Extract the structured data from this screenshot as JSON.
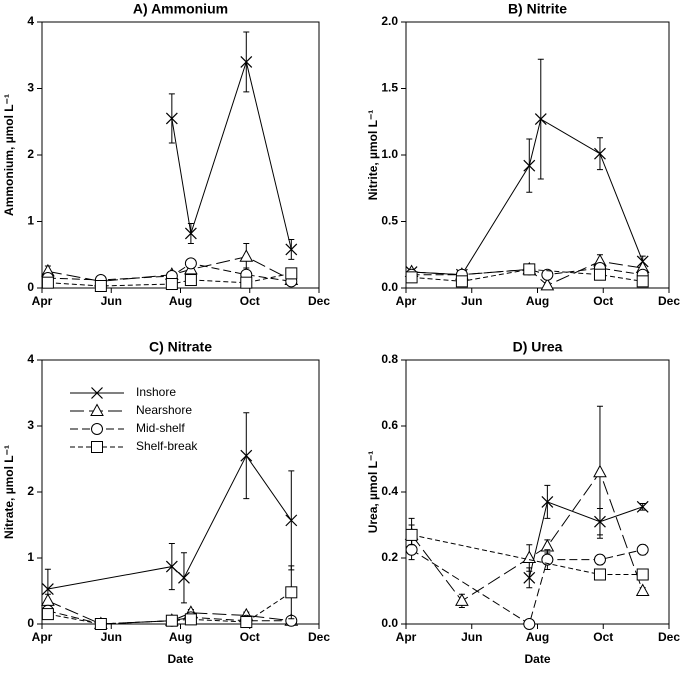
{
  "chart_data": [
    {
      "type": "line",
      "title": "A) Ammonium",
      "y_label": "Ammonium, µmol L⁻¹",
      "xlim": [
        4,
        12
      ],
      "xticks": [
        {
          "value": 4,
          "label": "Apr"
        },
        {
          "value": 6,
          "label": "Jun"
        },
        {
          "value": 8,
          "label": "Aug"
        },
        {
          "value": 10,
          "label": "Oct"
        },
        {
          "value": 12,
          "label": "Dec"
        }
      ],
      "ylim": [
        0,
        4
      ],
      "yticks": [
        0,
        1,
        2,
        3,
        4
      ],
      "series": [
        {
          "marker": "x",
          "line_style": "solid",
          "color": "#000000",
          "x": [
            7.75,
            8.3,
            9.9,
            11.2
          ],
          "values": [
            2.55,
            0.82,
            3.4,
            0.58
          ],
          "errors": [
            0.37,
            0.15,
            0.45,
            0.15
          ]
        },
        {
          "marker": "triangle",
          "line_style": "long-dash",
          "color": "#000000",
          "x": [
            4.17,
            5.7,
            7.75,
            8.3,
            9.9,
            11.2
          ],
          "values": [
            0.25,
            0.1,
            0.2,
            0.28,
            0.47,
            0.12
          ],
          "errors": [
            0.08,
            0.03,
            0.05,
            0.06,
            0.2,
            0.05
          ]
        },
        {
          "marker": "circle",
          "line_style": "dash",
          "color": "#000000",
          "x": [
            4.17,
            5.7,
            7.75,
            8.3,
            9.9,
            11.2
          ],
          "values": [
            0.15,
            0.12,
            0.18,
            0.37,
            0.2,
            0.1
          ],
          "errors": [
            0.05,
            0.05,
            0.05,
            0.06,
            0.1,
            0.04
          ]
        },
        {
          "marker": "square",
          "line_style": "short-dash",
          "color": "#000000",
          "x": [
            4.17,
            5.7,
            7.75,
            8.3,
            9.9,
            11.2
          ],
          "values": [
            0.08,
            0.03,
            0.06,
            0.12,
            0.08,
            0.22
          ],
          "errors": [
            0.03,
            0.02,
            0.03,
            0.04,
            0.04,
            0.08
          ]
        }
      ]
    },
    {
      "type": "line",
      "title": "B) Nitrite",
      "y_label": "Nitrite, µmol L⁻¹",
      "xlim": [
        4,
        12
      ],
      "xticks": [
        {
          "value": 4,
          "label": "Apr"
        },
        {
          "value": 6,
          "label": "Jun"
        },
        {
          "value": 8,
          "label": "Aug"
        },
        {
          "value": 10,
          "label": "Oct"
        },
        {
          "value": 12,
          "label": "Dec"
        }
      ],
      "ylim": [
        0,
        2
      ],
      "yticks": [
        {
          "value": 0,
          "label": "0.0"
        },
        0.5,
        {
          "value": 1,
          "label": "1.0"
        },
        1.5,
        {
          "value": 2,
          "label": "2.0"
        }
      ],
      "series": [
        {
          "marker": "x",
          "line_style": "solid",
          "color": "#000000",
          "x": [
            4.17,
            5.7,
            7.75,
            8.1,
            9.9,
            11.2
          ],
          "values": [
            0.12,
            0.1,
            0.92,
            1.27,
            1.01,
            0.2
          ],
          "errors": [
            0.02,
            0.02,
            0.2,
            0.45,
            0.12,
            0.04
          ]
        },
        {
          "marker": "triangle",
          "line_style": "long-dash",
          "color": "#000000",
          "x": [
            4.17,
            5.7,
            7.75,
            8.3,
            9.9,
            11.2
          ],
          "values": [
            0.12,
            0.1,
            0.14,
            0.02,
            0.2,
            0.15
          ],
          "errors": [
            0.02,
            0.02,
            0.02,
            0.02,
            0.05,
            0.03
          ]
        },
        {
          "marker": "circle",
          "line_style": "dash",
          "color": "#000000",
          "x": [
            4.17,
            5.7,
            7.75,
            8.3,
            9.9,
            11.2
          ],
          "values": [
            0.1,
            0.1,
            0.14,
            0.1,
            0.15,
            0.1
          ],
          "errors": [
            0.02,
            0.02,
            0.02,
            0.02,
            0.03,
            0.02
          ]
        },
        {
          "marker": "square",
          "line_style": "short-dash",
          "color": "#000000",
          "x": [
            4.17,
            5.7,
            7.75,
            9.9,
            11.2
          ],
          "values": [
            0.08,
            0.05,
            0.14,
            0.1,
            0.05
          ],
          "errors": [
            0.02,
            0.02,
            0.02,
            0.03,
            0.02
          ]
        }
      ]
    },
    {
      "type": "line",
      "title": "C) Nitrate",
      "y_label": "Nitrate, µmol L⁻¹",
      "x_label": "Date",
      "legend": "upper left",
      "xlim": [
        4,
        12
      ],
      "xticks": [
        {
          "value": 4,
          "label": "Apr"
        },
        {
          "value": 6,
          "label": "Jun"
        },
        {
          "value": 8,
          "label": "Aug"
        },
        {
          "value": 10,
          "label": "Oct"
        },
        {
          "value": 12,
          "label": "Dec"
        }
      ],
      "ylim": [
        0,
        4
      ],
      "yticks": [
        0,
        1,
        2,
        3,
        4
      ],
      "series": [
        {
          "name": "Inshore",
          "marker": "x",
          "line_style": "solid",
          "color": "#000000",
          "x": [
            4.17,
            7.75,
            8.1,
            9.9,
            11.2
          ],
          "values": [
            0.53,
            0.87,
            0.7,
            2.55,
            1.57
          ],
          "errors": [
            0.3,
            0.35,
            0.38,
            0.65,
            0.75
          ]
        },
        {
          "name": "Nearshore",
          "marker": "triangle",
          "line_style": "long-dash",
          "color": "#000000",
          "x": [
            4.17,
            5.7,
            7.75,
            8.3,
            9.9,
            11.2
          ],
          "values": [
            0.35,
            0,
            0.05,
            0.17,
            0.13,
            0.05
          ],
          "errors": [
            0.1,
            0,
            0.02,
            0.05,
            0.05,
            0.02
          ]
        },
        {
          "name": "Mid-shelf",
          "marker": "circle",
          "line_style": "dash",
          "color": "#000000",
          "x": [
            4.17,
            5.7,
            7.75,
            8.3,
            9.9,
            11.2
          ],
          "values": [
            0.2,
            0,
            0.05,
            0.1,
            0.05,
            0.05
          ],
          "errors": [
            0.05,
            0,
            0.02,
            0.04,
            0.02,
            0.02
          ]
        },
        {
          "name": "Shelf-break",
          "marker": "square",
          "line_style": "short-dash",
          "color": "#000000",
          "x": [
            4.17,
            5.7,
            7.75,
            8.3,
            9.9,
            11.2
          ],
          "values": [
            0.15,
            0,
            0.05,
            0.07,
            0.03,
            0.48
          ],
          "errors": [
            0.05,
            0,
            0.02,
            0.03,
            0.02,
            0.4
          ]
        }
      ]
    },
    {
      "type": "line",
      "title": "D) Urea",
      "y_label": "Urea, µmol L⁻¹",
      "x_label": "Date",
      "xlim": [
        4,
        12
      ],
      "xticks": [
        {
          "value": 4,
          "label": "Apr"
        },
        {
          "value": 6,
          "label": "Jun"
        },
        {
          "value": 8,
          "label": "Aug"
        },
        {
          "value": 10,
          "label": "Oct"
        },
        {
          "value": 12,
          "label": "Dec"
        }
      ],
      "ylim": [
        0,
        0.8
      ],
      "yticks": [
        {
          "value": 0,
          "label": "0.0"
        },
        0.2,
        0.4,
        0.6,
        0.8
      ],
      "series": [
        {
          "marker": "x",
          "line_style": "solid",
          "color": "#000000",
          "x": [
            7.75,
            8.3,
            9.9,
            11.2
          ],
          "values": [
            0.14,
            0.37,
            0.31,
            0.355
          ],
          "errors": [
            0.03,
            0.05,
            0.04,
            0.01
          ]
        },
        {
          "marker": "triangle",
          "line_style": "long-dash",
          "color": "#000000",
          "x": [
            4.17,
            5.7,
            7.75,
            8.3,
            9.9,
            11.2
          ],
          "values": [
            0.27,
            0.07,
            0.2,
            0.235,
            0.46,
            0.1
          ],
          "errors": [
            0.05,
            0.02,
            0.04,
            0.02,
            0.2,
            0.01
          ]
        },
        {
          "marker": "circle",
          "line_style": "dash",
          "color": "#000000",
          "x": [
            4.17,
            7.75,
            8.3,
            9.9,
            11.2
          ],
          "values": [
            0.225,
            0,
            0.195,
            0.195,
            0.225
          ],
          "errors": [
            0.03,
            0,
            0.03,
            0.015,
            0.015
          ]
        },
        {
          "marker": "square",
          "line_style": "short-dash",
          "color": "#000000",
          "x": [
            4.17,
            9.9,
            11.2
          ],
          "values": [
            0.27,
            0.15,
            0.15
          ],
          "errors": [
            0.03,
            0.01,
            0.01
          ]
        }
      ]
    }
  ]
}
